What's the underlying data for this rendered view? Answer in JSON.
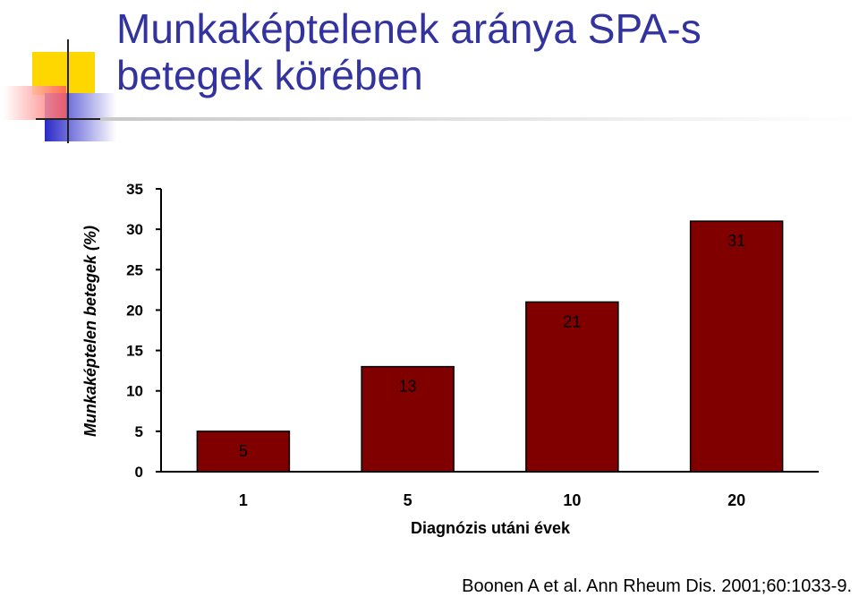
{
  "slide": {
    "title": "Munkaképtelenek aránya SPA-s betegek körében",
    "citation": "Boonen A et al. Ann Rheum Dis. 2001;60:1033-9."
  },
  "colors": {
    "title": "#3333a0",
    "bar": "#800000",
    "deco_yellow": "#ffd700",
    "deco_red": "#ff6666",
    "deco_blue": "#3333cc"
  },
  "chart_data": {
    "type": "bar",
    "categories": [
      "1",
      "5",
      "10",
      "20"
    ],
    "values": [
      5,
      13,
      21,
      31
    ],
    "title": "",
    "xlabel": "Diagnózis utáni évek",
    "ylabel": "Munkaképtelen betegek (%)",
    "ylim": [
      0,
      35
    ],
    "yticks": [
      0,
      5,
      10,
      15,
      20,
      25,
      30,
      35
    ],
    "grid": false,
    "legend": "none"
  }
}
